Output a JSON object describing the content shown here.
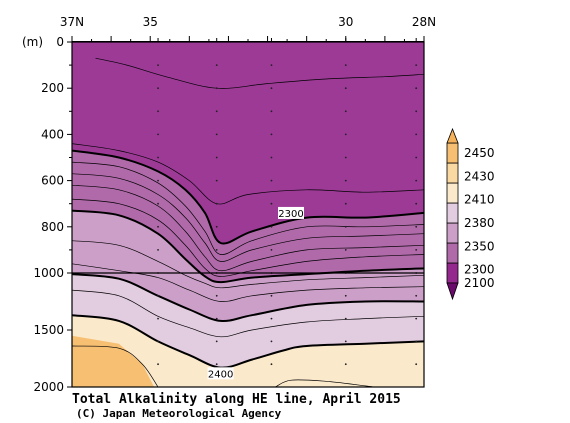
{
  "chart_data": {
    "type": "contour-section",
    "title": "Total Alkalinity along HE line, April 2015",
    "credit": "(C) Japan Meteorological Agency",
    "y_unit_label": "(m)",
    "x_axis": {
      "direction": "north-to-south",
      "range_deg": [
        37,
        28
      ],
      "tick_labels": [
        {
          "lat": 37,
          "text": "37N"
        },
        {
          "lat": 35,
          "text": "35"
        },
        {
          "lat": 30,
          "text": "30"
        },
        {
          "lat": 28,
          "text": "28N"
        }
      ]
    },
    "y_axis": {
      "inverted": true,
      "break_depth": 1000,
      "range_m": [
        0,
        2000
      ],
      "tick_labels": [
        {
          "depth": 0,
          "text": "0"
        },
        {
          "depth": 200,
          "text": "200"
        },
        {
          "depth": 400,
          "text": "400"
        },
        {
          "depth": 600,
          "text": "600"
        },
        {
          "depth": 800,
          "text": "800"
        },
        {
          "depth": 1000,
          "text": "1000"
        },
        {
          "depth": 1500,
          "text": "1500"
        },
        {
          "depth": 2000,
          "text": "2000"
        }
      ]
    },
    "stations_lat": [
      37,
      34.8,
      33.3,
      31.9,
      30.0,
      28.2
    ],
    "station_sample_depths": [
      100,
      200,
      300,
      400,
      500,
      600,
      700,
      800,
      900,
      1000,
      1200,
      1400,
      1600,
      1800
    ],
    "colorbar": {
      "levels": [
        2100,
        2300,
        2350,
        2380,
        2410,
        2430,
        2450
      ],
      "tick_labels": [
        "2450",
        "2430",
        "2410",
        "2380",
        "2350",
        "2300",
        "2100"
      ],
      "colors": [
        "#94288f",
        "#b06aaa",
        "#cc9fc8",
        "#e2cce0",
        "#fbe9cb",
        "#fad8a2",
        "#f7bf72"
      ],
      "under_color": "#6a0a6a",
      "over_color": "#f5b25a"
    },
    "background_fill": "#9c3a96",
    "contours": [
      {
        "value": 2290,
        "bold": false,
        "points": [
          [
            36.4,
            70
          ],
          [
            35.6,
            100
          ],
          [
            34.6,
            150
          ],
          [
            33.3,
            200
          ],
          [
            32.0,
            180
          ],
          [
            30.5,
            160
          ],
          [
            29.0,
            150
          ],
          [
            28.0,
            140
          ]
        ]
      },
      {
        "value": 2295,
        "bold": false,
        "points": [
          [
            37,
            440
          ],
          [
            35.8,
            470
          ],
          [
            34.8,
            520
          ],
          [
            34.0,
            600
          ],
          [
            33.3,
            700
          ],
          [
            32.5,
            660
          ],
          [
            31.0,
            640
          ],
          [
            29.5,
            650
          ],
          [
            28.0,
            640
          ]
        ]
      },
      {
        "value": 2300,
        "bold": true,
        "points": [
          [
            37,
            470
          ],
          [
            35.8,
            500
          ],
          [
            34.8,
            560
          ],
          [
            34.1,
            640
          ],
          [
            33.6,
            740
          ],
          [
            33.2,
            870
          ],
          [
            32.4,
            820
          ],
          [
            31.0,
            760
          ],
          [
            29.5,
            760
          ],
          [
            28.0,
            740
          ]
        ]
      },
      {
        "value": 2310,
        "bold": false,
        "points": [
          [
            37,
            520
          ],
          [
            35.8,
            540
          ],
          [
            34.8,
            610
          ],
          [
            34.1,
            710
          ],
          [
            33.6,
            820
          ],
          [
            33.2,
            920
          ],
          [
            32.4,
            860
          ],
          [
            31.0,
            800
          ],
          [
            29.5,
            800
          ],
          [
            28.0,
            790
          ]
        ]
      },
      {
        "value": 2320,
        "bold": false,
        "points": [
          [
            37,
            570
          ],
          [
            35.8,
            590
          ],
          [
            34.8,
            660
          ],
          [
            34.1,
            760
          ],
          [
            33.6,
            870
          ],
          [
            33.2,
            950
          ],
          [
            32.4,
            900
          ],
          [
            31.0,
            850
          ],
          [
            29.5,
            840
          ],
          [
            28.0,
            830
          ]
        ]
      },
      {
        "value": 2330,
        "bold": false,
        "points": [
          [
            37,
            620
          ],
          [
            35.8,
            640
          ],
          [
            34.8,
            710
          ],
          [
            34.1,
            820
          ],
          [
            33.6,
            930
          ],
          [
            33.2,
            990
          ],
          [
            32.4,
            950
          ],
          [
            31.0,
            900
          ],
          [
            29.5,
            890
          ],
          [
            28.0,
            880
          ]
        ]
      },
      {
        "value": 2340,
        "bold": false,
        "points": [
          [
            37,
            680
          ],
          [
            35.8,
            700
          ],
          [
            34.8,
            770
          ],
          [
            34.1,
            880
          ],
          [
            33.6,
            980
          ],
          [
            33.2,
            1030
          ],
          [
            32.4,
            990
          ],
          [
            31.0,
            950
          ],
          [
            29.5,
            930
          ],
          [
            28.0,
            920
          ]
        ]
      },
      {
        "value": 2350,
        "bold": true,
        "points": [
          [
            37,
            730
          ],
          [
            35.8,
            750
          ],
          [
            34.8,
            830
          ],
          [
            34.1,
            940
          ],
          [
            33.6,
            1030
          ],
          [
            33.2,
            1080
          ],
          [
            32.4,
            1040
          ],
          [
            31.0,
            1010
          ],
          [
            29.5,
            990
          ],
          [
            28.0,
            980
          ]
        ]
      },
      {
        "value": 2360,
        "bold": false,
        "points": [
          [
            37,
            860
          ],
          [
            35.8,
            880
          ],
          [
            34.8,
            950
          ],
          [
            34.1,
            1020
          ],
          [
            33.6,
            1090
          ],
          [
            33.2,
            1130
          ],
          [
            32.4,
            1100
          ],
          [
            31.0,
            1060
          ],
          [
            29.5,
            1040
          ],
          [
            28.0,
            1020
          ]
        ]
      },
      {
        "value": 2370,
        "bold": false,
        "points": [
          [
            37,
            960
          ],
          [
            35.8,
            990
          ],
          [
            34.8,
            1040
          ],
          [
            34.0,
            1150
          ],
          [
            33.2,
            1250
          ],
          [
            32.4,
            1200
          ],
          [
            31.0,
            1150
          ],
          [
            29.5,
            1130
          ],
          [
            28.0,
            1120
          ]
        ]
      },
      {
        "value": 2380,
        "bold": true,
        "points": [
          [
            37,
            1010
          ],
          [
            35.8,
            1050
          ],
          [
            34.8,
            1200
          ],
          [
            34.0,
            1320
          ],
          [
            33.2,
            1420
          ],
          [
            32.4,
            1370
          ],
          [
            31.0,
            1280
          ],
          [
            29.5,
            1250
          ],
          [
            28.0,
            1250
          ]
        ]
      },
      {
        "value": 2390,
        "bold": false,
        "points": [
          [
            37,
            1150
          ],
          [
            35.8,
            1200
          ],
          [
            34.8,
            1380
          ],
          [
            34.0,
            1480
          ],
          [
            33.2,
            1560
          ],
          [
            32.4,
            1500
          ],
          [
            31.0,
            1430
          ],
          [
            29.5,
            1400
          ],
          [
            28.0,
            1380
          ]
        ]
      },
      {
        "value": 2400,
        "bold": true,
        "points": [
          [
            37,
            1370
          ],
          [
            35.8,
            1420
          ],
          [
            34.8,
            1600
          ],
          [
            34.0,
            1720
          ],
          [
            33.2,
            1830
          ],
          [
            32.4,
            1760
          ],
          [
            31.6,
            1680
          ],
          [
            31.0,
            1640
          ],
          [
            29.5,
            1620
          ],
          [
            28.0,
            1600
          ]
        ]
      },
      {
        "value": 2405,
        "bold": false,
        "points": [
          [
            37,
            1640
          ],
          [
            35.8,
            1660
          ],
          [
            35.2,
            1800
          ],
          [
            34.8,
            2000
          ]
        ]
      },
      {
        "value": 2405,
        "bold": false,
        "points": [
          [
            31.8,
            2000
          ],
          [
            31.4,
            1940
          ],
          [
            30.5,
            1950
          ],
          [
            29.5,
            1990
          ],
          [
            29.3,
            2000
          ]
        ]
      }
    ],
    "fill_bands": [
      {
        "level": 2410,
        "color": "#fbe9cb",
        "lower_boundary_is_bottom": true,
        "boundary_ref": 12
      },
      {
        "level": 2380,
        "color": "#e2cce0",
        "boundary_ref": 10
      },
      {
        "level": 2350,
        "color": "#cc9fc8",
        "boundary_ref": 7
      },
      {
        "level": 2300,
        "color": "#b06aaa",
        "boundary_ref": 2
      }
    ],
    "orange_patch": {
      "color": "#f7bf72",
      "points": [
        [
          37,
          1550
        ],
        [
          35.8,
          1620
        ],
        [
          35.2,
          1800
        ],
        [
          34.9,
          2000
        ],
        [
          37,
          2000
        ]
      ]
    },
    "contour_labels": [
      {
        "text": "2300",
        "lat": 31.4,
        "depth": 740
      },
      {
        "text": "2400",
        "lat": 33.2,
        "depth": 1880
      }
    ]
  }
}
